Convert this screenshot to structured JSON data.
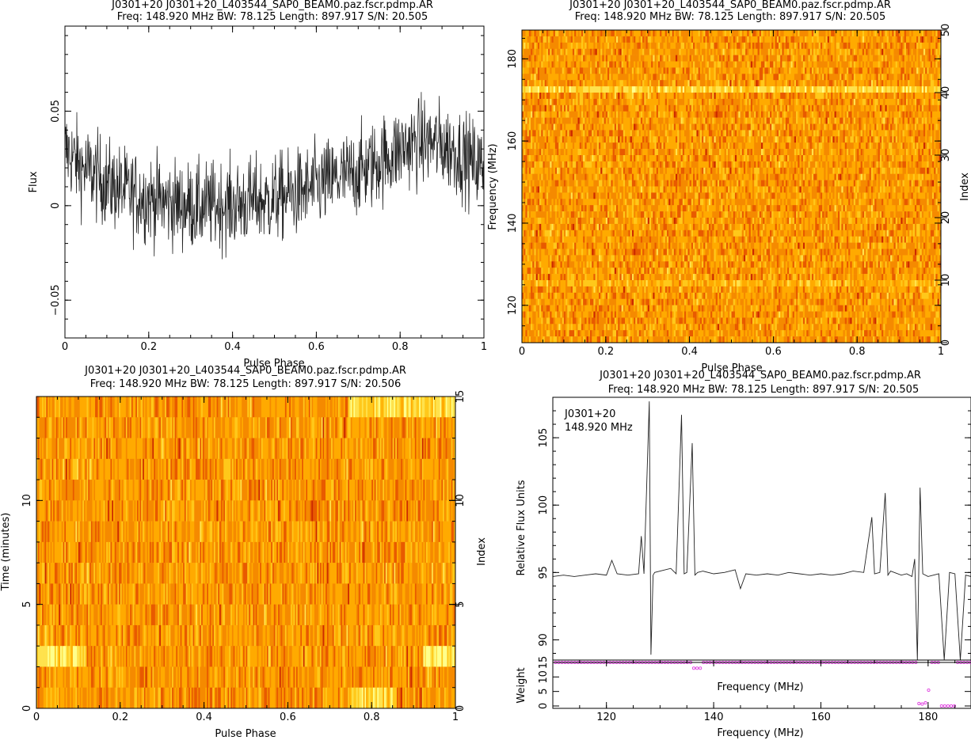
{
  "chart_data": [
    {
      "type": "line",
      "title": "J0301+20  J0301+20_L403544_SAP0_BEAM0.paz.fscr.pdmp.AR",
      "subtitle": "Freq: 148.920 MHz BW: 78.125 Length: 897.917 S/N: 20.505",
      "xlabel": "Pulse Phase",
      "ylabel": "Flux",
      "xlim": [
        0,
        1
      ],
      "ylim": [
        -0.07,
        0.095
      ],
      "xticks": [
        "0",
        "0.2",
        "0.4",
        "0.6",
        "0.8",
        "1"
      ],
      "yticks": [
        "−0.05",
        "0",
        "0.05"
      ],
      "series": [
        {
          "x": [
            0,
            0.02,
            0.04,
            0.06,
            0.08,
            0.1,
            0.12,
            0.14,
            0.16,
            0.18,
            0.2,
            0.22,
            0.24,
            0.26,
            0.28,
            0.3,
            0.32,
            0.34,
            0.36,
            0.38,
            0.4,
            0.42,
            0.44,
            0.46,
            0.48,
            0.5,
            0.52,
            0.54,
            0.56,
            0.58,
            0.6,
            0.62,
            0.64,
            0.66,
            0.68,
            0.7,
            0.72,
            0.74,
            0.76,
            0.78,
            0.8,
            0.82,
            0.84,
            0.86,
            0.88,
            0.9,
            0.92,
            0.94,
            0.96,
            0.98,
            1
          ],
          "values": [
            0.03,
            0.025,
            0.02,
            0.018,
            0.015,
            0.012,
            0.01,
            0.008,
            0.006,
            0.005,
            0.004,
            0.003,
            0.002,
            0.001,
            0,
            0,
            -0.001,
            0,
            0,
            0.001,
            0,
            0.001,
            0.002,
            0.003,
            0.002,
            0.004,
            0.005,
            0.006,
            0.007,
            0.008,
            0.01,
            0.012,
            0.013,
            0.015,
            0.016,
            0.018,
            0.02,
            0.022,
            0.025,
            0.027,
            0.03,
            0.032,
            0.033,
            0.034,
            0.033,
            0.032,
            0.03,
            0.028,
            0.025,
            0.022,
            0.02
          ]
        }
      ]
    },
    {
      "type": "heatmap",
      "title": "J0301+20  J0301+20_L403544_SAP0_BEAM0.paz.fscr.pdmp.AR",
      "subtitle": "Freq: 148.920 MHz BW: 78.125 Length: 897.917 S/N: 20.505",
      "xlabel": "Pulse Phase",
      "ylabel": "Frequency (MHz)",
      "ylabel_right": "Index",
      "xlim": [
        0,
        1
      ],
      "ylim": [
        110.9,
        187
      ],
      "index_range": [
        0,
        50
      ],
      "xticks": [
        "0",
        "0.2",
        "0.4",
        "0.6",
        "0.8",
        "1"
      ],
      "yticks": [
        "120",
        "140",
        "160",
        "180"
      ],
      "yticks_right": [
        "0",
        "10",
        "20",
        "30",
        "40",
        "50"
      ],
      "colormap": [
        "#b30000",
        "#ff7a00",
        "#ffbf00",
        "#ffff80"
      ]
    },
    {
      "type": "heatmap",
      "title": "J0301+20  J0301+20_L403544_SAP0_BEAM0.paz.fscr.pdmp.AR",
      "subtitle": "Freq: 148.920 MHz BW: 78.125 Length: 897.917 S/N: 20.506",
      "xlabel": "Pulse Phase",
      "ylabel": "Time (minutes)",
      "ylabel_right": "Index",
      "xlim": [
        0,
        1
      ],
      "ylim": [
        0,
        15
      ],
      "index_range": [
        0,
        15
      ],
      "xticks": [
        "0",
        "0.2",
        "0.4",
        "0.6",
        "0.8",
        "1"
      ],
      "yticks": [
        "0",
        "5",
        "10"
      ],
      "yticks_right": [
        "0",
        "5",
        "10",
        "15"
      ],
      "colormap": [
        "#b30000",
        "#ff7a00",
        "#ffbf00",
        "#ffff80"
      ]
    },
    {
      "type": "line",
      "title": "J0301+20  J0301+20_L403544_SAP0_BEAM0.paz.fscr.pdmp.AR",
      "subtitle": "Freq: 148.920 MHz BW: 78.125 Length: 897.917 S/N: 20.505",
      "annotation": [
        "J0301+20",
        "148.920 MHz"
      ],
      "xlabel": "Frequency (MHz)",
      "ylabel": "Relative Flux Units",
      "xlim": [
        110,
        188
      ],
      "ylim": [
        88.5,
        108
      ],
      "xticks": [
        "120",
        "140",
        "160",
        "180"
      ],
      "yticks": [
        "90",
        "95",
        "100",
        "105"
      ],
      "series": [
        {
          "x": [
            110,
            112,
            114,
            116,
            118,
            120,
            121,
            122,
            124,
            126,
            126.5,
            127,
            128,
            128.3,
            128.7,
            129,
            130,
            132,
            133,
            134,
            134.5,
            135,
            136,
            136.5,
            137,
            138,
            140,
            142,
            144,
            145,
            146,
            148,
            150,
            152,
            154,
            156,
            158,
            160,
            162,
            164,
            166,
            168,
            169.5,
            170,
            171,
            172,
            172.5,
            173,
            175,
            176,
            177,
            177.5,
            178,
            178.5,
            179,
            180,
            181,
            182,
            183,
            184,
            185,
            186,
            187,
            188
          ],
          "values": [
            94.7,
            94.8,
            94.7,
            94.8,
            94.9,
            94.8,
            95.9,
            94.9,
            94.8,
            94.9,
            97.7,
            94.9,
            107.7,
            88.9,
            94.8,
            95.0,
            95.1,
            95.3,
            94.9,
            106.7,
            94.9,
            95.0,
            104.6,
            94.8,
            95.0,
            95.1,
            94.9,
            95.0,
            95.2,
            93.8,
            94.9,
            94.8,
            94.9,
            94.8,
            95.0,
            94.9,
            94.8,
            94.9,
            94.8,
            94.9,
            95.1,
            95.0,
            99.1,
            94.9,
            95.0,
            100.9,
            94.8,
            95.1,
            94.8,
            94.9,
            94.7,
            96.0,
            88.5,
            101.3,
            94.9,
            94.7,
            94.8,
            94.9,
            88.5,
            95.0,
            94.9,
            88.5,
            94.8,
            94.7
          ]
        }
      ],
      "weights": {
        "ylabel": "Weight",
        "yticks": [
          "0",
          "5",
          "10",
          "15"
        ],
        "note": "mostly 15; near-zero around 178-185 MHz"
      }
    }
  ]
}
